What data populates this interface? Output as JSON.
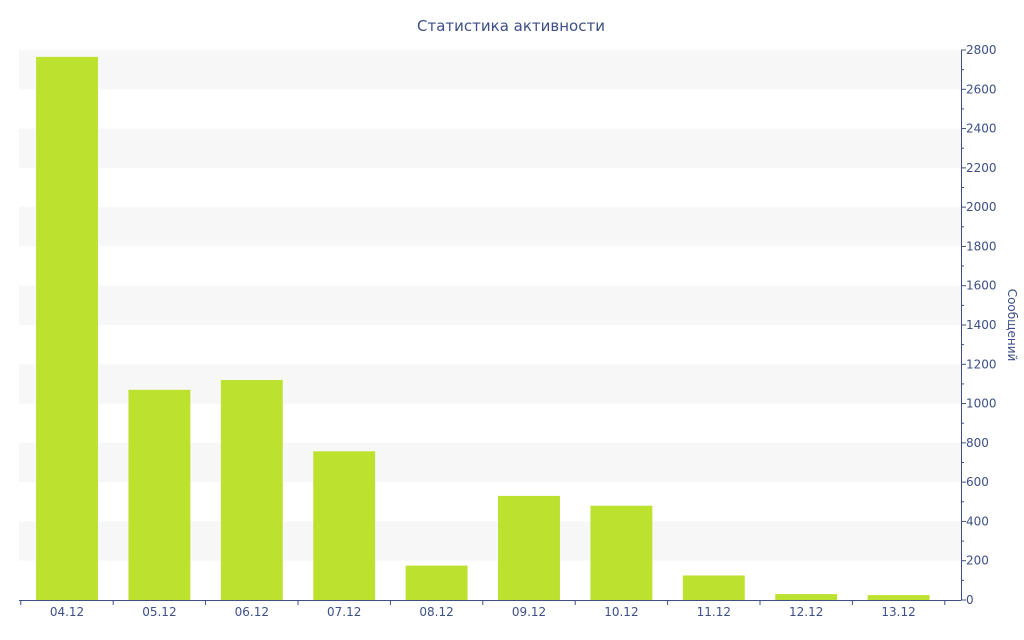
{
  "chart_data": {
    "type": "bar",
    "title": "Статистика активности",
    "xlabel": "",
    "ylabel": "Сообщений",
    "y_axis_side": "right",
    "grid": "alternating horizontal bands",
    "categories": [
      "04.12",
      "05.12",
      "06.12",
      "07.12",
      "08.12",
      "09.12",
      "10.12",
      "11.12",
      "12.12",
      "13.12"
    ],
    "values": [
      2765,
      1070,
      1120,
      757,
      175,
      530,
      480,
      125,
      30,
      25
    ],
    "ylim": [
      0,
      2800
    ],
    "yticks": [
      0,
      200,
      400,
      600,
      800,
      1000,
      1200,
      1400,
      1600,
      1800,
      2000,
      2200,
      2400,
      2600,
      2800
    ],
    "colors": {
      "bar": "#bce12f",
      "band": "#f7f7f7",
      "axis": "#3d4f86",
      "text": "#3d4f86"
    }
  }
}
